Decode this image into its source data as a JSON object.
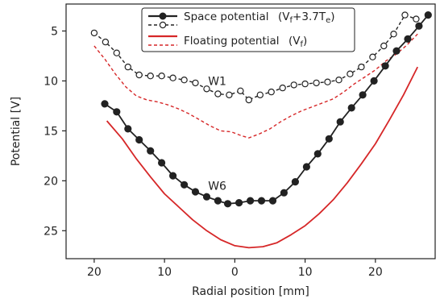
{
  "chart_data": {
    "type": "line",
    "xlabel": "Radial position [mm]",
    "ylabel": "Potential [V]",
    "xlim": [
      -24,
      28.5
    ],
    "ylim": [
      27.8,
      2.3
    ],
    "y_inverted": true,
    "x_ticks": [
      -20,
      -10,
      0,
      10,
      20
    ],
    "x_tick_labels": [
      "20",
      "10",
      "0",
      "10",
      "20"
    ],
    "y_ticks": [
      5,
      10,
      15,
      20,
      25
    ],
    "y_tick_labels": [
      "5",
      "10",
      "15",
      "20",
      "25"
    ],
    "grid": false,
    "legend": {
      "position": "top-center",
      "entries": [
        {
          "name": "Space potential",
          "formula": "(V",
          "formula_sub1": "f",
          "formula_mid": "+3.7T",
          "formula_sub2": "e",
          "formula_end": ")",
          "style": "space"
        },
        {
          "name": "Floating potential",
          "formula": "(V",
          "formula_sub1": "f",
          "formula_mid": "",
          "formula_sub2": "",
          "formula_end": ")",
          "style": "floating"
        }
      ]
    },
    "annotations": [
      {
        "text": "W1",
        "x": -3.8,
        "y": 10.4
      },
      {
        "text": "W6",
        "x": -3.8,
        "y": 20.9
      }
    ],
    "series": [
      {
        "key": "w1_space",
        "color": "#222222",
        "dashed": true,
        "marker": "open-circle",
        "x": [
          -20,
          -18.4,
          -16.8,
          -15.2,
          -13.6,
          -12,
          -10.4,
          -8.8,
          -7.2,
          -5.6,
          -4,
          -2.4,
          -0.8,
          0.8,
          2,
          3.6,
          5.2,
          6.8,
          8.4,
          10,
          11.6,
          13.2,
          14.8,
          16.4,
          18,
          19.6,
          21.2,
          22.6,
          24.2,
          25.8
        ],
        "y": [
          5.2,
          6.1,
          7.2,
          8.6,
          9.4,
          9.5,
          9.5,
          9.7,
          9.9,
          10.2,
          10.8,
          11.3,
          11.4,
          11.0,
          11.9,
          11.4,
          11.1,
          10.7,
          10.4,
          10.3,
          10.2,
          10.1,
          9.9,
          9.3,
          8.6,
          7.6,
          6.5,
          5.3,
          3.4,
          3.8
        ]
      },
      {
        "key": "w1_floating",
        "color": "#d62728",
        "dashed": true,
        "marker": "none",
        "x": [
          -20,
          -18.5,
          -17,
          -15.5,
          -14,
          -12.5,
          -11,
          -9.5,
          -8,
          -6.5,
          -5,
          -3.5,
          -2,
          -0.5,
          1,
          2,
          3.5,
          5,
          6.5,
          8,
          9.5,
          11,
          12.5,
          14,
          15.5,
          17,
          18.5,
          20,
          21.5,
          23,
          24.5,
          26
        ],
        "y": [
          6.5,
          7.8,
          9.3,
          10.6,
          11.5,
          11.9,
          12.1,
          12.4,
          12.8,
          13.3,
          13.9,
          14.5,
          15.0,
          15.1,
          15.5,
          15.7,
          15.3,
          14.8,
          14.1,
          13.5,
          13.0,
          12.6,
          12.2,
          11.8,
          11.1,
          10.3,
          9.6,
          8.9,
          8.0,
          7.3,
          6.4,
          5.3
        ]
      },
      {
        "key": "w6_space",
        "color": "#222222",
        "dashed": false,
        "marker": "filled-circle",
        "x": [
          -18.5,
          -16.8,
          -15.2,
          -13.6,
          -12,
          -10.4,
          -8.8,
          -7.2,
          -5.6,
          -4,
          -2.4,
          -1,
          0.6,
          2.2,
          3.8,
          5.4,
          7,
          8.6,
          10.2,
          11.8,
          13.4,
          15,
          16.6,
          18.2,
          19.8,
          21.4,
          23,
          24.6,
          26.2,
          27.5
        ],
        "y": [
          12.3,
          13.1,
          14.8,
          15.9,
          17.0,
          18.2,
          19.5,
          20.4,
          21.1,
          21.6,
          22.0,
          22.3,
          22.2,
          22.0,
          22.0,
          22.0,
          21.2,
          20.1,
          18.6,
          17.3,
          15.8,
          14.1,
          12.7,
          11.4,
          10.0,
          8.5,
          7.0,
          5.8,
          4.5,
          3.4
        ]
      },
      {
        "key": "w6_floating",
        "color": "#d62728",
        "dashed": false,
        "marker": "none",
        "x": [
          -18.2,
          -16,
          -14,
          -12,
          -10,
          -8,
          -6,
          -4,
          -2,
          0,
          2,
          4,
          6,
          8,
          10,
          12,
          14,
          16,
          18,
          20,
          22,
          24,
          26
        ],
        "y": [
          14.0,
          15.8,
          17.8,
          19.6,
          21.3,
          22.6,
          23.9,
          25.0,
          25.9,
          26.5,
          26.7,
          26.6,
          26.2,
          25.4,
          24.5,
          23.3,
          21.9,
          20.2,
          18.3,
          16.3,
          13.9,
          11.4,
          8.6
        ]
      }
    ]
  }
}
